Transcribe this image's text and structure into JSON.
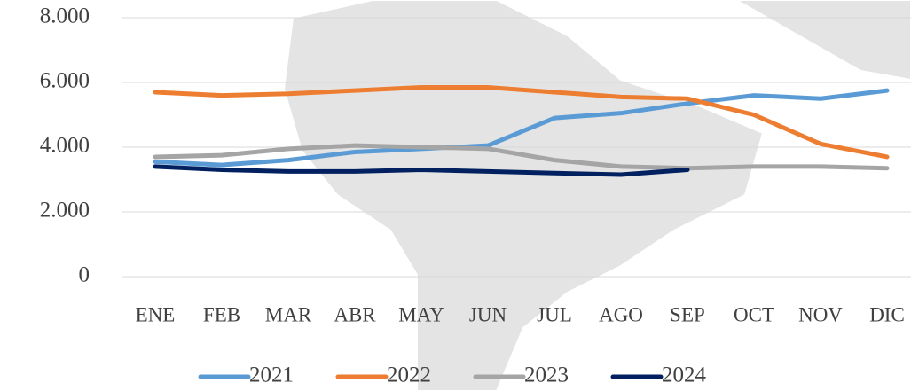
{
  "chart_data": {
    "type": "line",
    "categories": [
      "ENE",
      "FEB",
      "MAR",
      "ABR",
      "MAY",
      "JUN",
      "JUL",
      "AGO",
      "SEP",
      "OCT",
      "NOV",
      "DIC"
    ],
    "series": [
      {
        "name": "2021",
        "color": "#5b9bd5",
        "values": [
          3550,
          3450,
          3600,
          3850,
          3950,
          4050,
          4900,
          5050,
          5350,
          5600,
          5500,
          5750
        ]
      },
      {
        "name": "2022",
        "color": "#ed7d31",
        "values": [
          5700,
          5600,
          5650,
          5750,
          5850,
          5850,
          5700,
          5550,
          5500,
          5000,
          4100,
          3700
        ]
      },
      {
        "name": "2023",
        "color": "#a5a5a5",
        "values": [
          3700,
          3750,
          3950,
          4050,
          4000,
          3950,
          3600,
          3400,
          3350,
          3400,
          3400,
          3350
        ]
      },
      {
        "name": "2024",
        "color": "#002060",
        "values": [
          3400,
          3300,
          3250,
          3250,
          3300,
          3250,
          3200,
          3150,
          3300,
          null,
          null,
          null
        ]
      }
    ],
    "ylim": [
      0,
      8000
    ],
    "yticks": [
      0,
      {
        "value": 2000,
        "label": "2.000"
      },
      {
        "value": 4000,
        "label": "4.000"
      },
      {
        "value": 6000,
        "label": "6.000"
      },
      {
        "value": 8000,
        "label": "8.000"
      }
    ],
    "grid": true,
    "legend": "bottom"
  }
}
